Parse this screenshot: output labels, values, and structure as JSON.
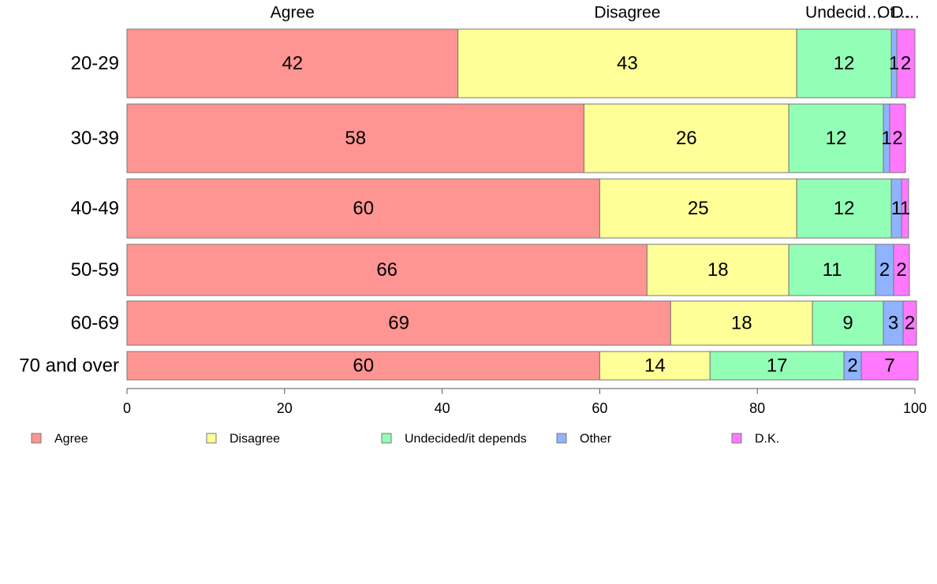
{
  "chart_data": {
    "type": "bar",
    "orientation": "horizontal",
    "stacked": true,
    "categories": [
      "20-29",
      "30-39",
      "40-49",
      "50-59",
      "60-69",
      "70 and over"
    ],
    "series": [
      {
        "name": "Agree",
        "color": "#ff9592",
        "values": [
          42,
          58,
          60,
          66,
          69,
          60
        ],
        "labels": [
          "42",
          "58",
          "60",
          "66",
          "69",
          "60"
        ]
      },
      {
        "name": "Disagree",
        "color": "#ffff97",
        "values": [
          43,
          26,
          25,
          18,
          18,
          14
        ],
        "labels": [
          "43",
          "26",
          "25",
          "18",
          "18",
          "14"
        ]
      },
      {
        "name": "Undecided/it depends",
        "color": "#93ffb6",
        "values": [
          12,
          12,
          12,
          11,
          9,
          17
        ],
        "labels": [
          "12",
          "12",
          "12",
          "11",
          "9",
          "17"
        ]
      },
      {
        "name": "Other",
        "color": "#8fb3ff",
        "values": [
          0.7,
          0.8,
          1.3,
          2.3,
          2.5,
          2.2
        ],
        "labels": [
          "1",
          "1",
          "1",
          "2",
          "3",
          "2"
        ]
      },
      {
        "name": "D.K.",
        "color": "#ff79ff",
        "values": [
          2.3,
          2.0,
          0.9,
          2.0,
          1.7,
          7.2
        ],
        "labels": [
          "2",
          "2",
          "1",
          "2",
          "2",
          "7"
        ]
      }
    ],
    "column_headers": [
      "Agree",
      "Disagree",
      "Undecid…",
      "Ot…",
      "D…"
    ],
    "x_ticks": [
      0,
      20,
      40,
      60,
      80,
      100
    ],
    "xlim": [
      0,
      100
    ],
    "xlabel": "",
    "ylabel": "",
    "legend_position": "bottom",
    "grid": false
  }
}
